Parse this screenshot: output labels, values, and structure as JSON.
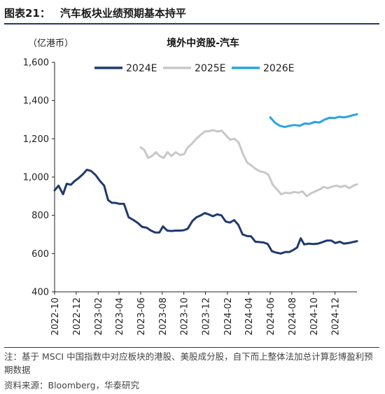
{
  "figure": {
    "label": "图表21：",
    "heading": "汽车板块业绩预期基本持平"
  },
  "chart_data": {
    "type": "line",
    "title": "境外中资股-汽车",
    "ylabel": "（亿港币）",
    "xlabel": "",
    "ylim": [
      400,
      1600
    ],
    "yticks": [
      400,
      600,
      800,
      1000,
      1200,
      1400,
      1600
    ],
    "ytick_labels": [
      "400",
      "600",
      "800",
      "1,000",
      "1,200",
      "1,400",
      "1,600"
    ],
    "xtick_labels": [
      "2022-10",
      "2022-12",
      "2023-02",
      "2023-04",
      "2023-06",
      "2023-08",
      "2023-10",
      "2023-12",
      "2024-02",
      "2024-04",
      "2024-06",
      "2024-08",
      "2024-10",
      "2024-12"
    ],
    "legend_position": "top-center",
    "grid": false,
    "series": [
      {
        "name": "2024E",
        "color": "#1f3a6e",
        "points": [
          [
            "2022-10-01",
            930
          ],
          [
            "2022-10-12",
            955
          ],
          [
            "2022-10-25",
            910
          ],
          [
            "2022-11-04",
            965
          ],
          [
            "2022-11-16",
            960
          ],
          [
            "2022-11-26",
            978
          ],
          [
            "2022-12-08",
            995
          ],
          [
            "2022-12-20",
            1015
          ],
          [
            "2022-12-31",
            1038
          ],
          [
            "2023-01-12",
            1032
          ],
          [
            "2023-01-25",
            1010
          ],
          [
            "2023-02-06",
            980
          ],
          [
            "2023-02-18",
            955
          ],
          [
            "2023-03-01",
            880
          ],
          [
            "2023-03-12",
            865
          ],
          [
            "2023-03-22",
            865
          ],
          [
            "2023-04-02",
            860
          ],
          [
            "2023-04-15",
            860
          ],
          [
            "2023-04-28",
            790
          ],
          [
            "2023-05-12",
            775
          ],
          [
            "2023-05-24",
            760
          ],
          [
            "2023-06-05",
            740
          ],
          [
            "2023-06-18",
            735
          ],
          [
            "2023-06-30",
            720
          ],
          [
            "2023-07-12",
            710
          ],
          [
            "2023-07-24",
            710
          ],
          [
            "2023-08-03",
            742
          ],
          [
            "2023-08-15",
            720
          ],
          [
            "2023-08-27",
            718
          ],
          [
            "2023-09-08",
            720
          ],
          [
            "2023-09-20",
            720
          ],
          [
            "2023-10-01",
            722
          ],
          [
            "2023-10-12",
            730
          ],
          [
            "2023-10-25",
            770
          ],
          [
            "2023-11-06",
            790
          ],
          [
            "2023-11-18",
            800
          ],
          [
            "2023-11-29",
            812
          ],
          [
            "2023-12-10",
            805
          ],
          [
            "2023-12-22",
            795
          ],
          [
            "2024-01-03",
            805
          ],
          [
            "2024-01-15",
            800
          ],
          [
            "2024-01-27",
            768
          ],
          [
            "2024-02-08",
            762
          ],
          [
            "2024-02-20",
            775
          ],
          [
            "2024-03-03",
            750
          ],
          [
            "2024-03-15",
            700
          ],
          [
            "2024-03-27",
            692
          ],
          [
            "2024-04-08",
            690
          ],
          [
            "2024-04-20",
            662
          ],
          [
            "2024-05-01",
            660
          ],
          [
            "2024-05-13",
            658
          ],
          [
            "2024-05-25",
            650
          ],
          [
            "2024-06-06",
            612
          ],
          [
            "2024-06-18",
            605
          ],
          [
            "2024-07-01",
            600
          ],
          [
            "2024-07-13",
            608
          ],
          [
            "2024-07-25",
            608
          ],
          [
            "2024-08-06",
            620
          ],
          [
            "2024-08-16",
            632
          ],
          [
            "2024-08-26",
            680
          ],
          [
            "2024-09-05",
            648
          ],
          [
            "2024-09-18",
            652
          ],
          [
            "2024-10-01",
            650
          ],
          [
            "2024-10-14",
            652
          ],
          [
            "2024-10-27",
            660
          ],
          [
            "2024-11-08",
            668
          ],
          [
            "2024-11-20",
            668
          ],
          [
            "2024-12-02",
            655
          ],
          [
            "2024-12-14",
            662
          ],
          [
            "2024-12-26",
            652
          ],
          [
            "2025-01-08",
            655
          ],
          [
            "2025-01-20",
            660
          ],
          [
            "2025-02-01",
            665
          ]
        ]
      },
      {
        "name": "2025E",
        "color": "#c8c8c8",
        "points": [
          [
            "2023-06-01",
            1155
          ],
          [
            "2023-06-12",
            1140
          ],
          [
            "2023-06-22",
            1100
          ],
          [
            "2023-07-03",
            1110
          ],
          [
            "2023-07-14",
            1130
          ],
          [
            "2023-07-25",
            1110
          ],
          [
            "2023-08-05",
            1100
          ],
          [
            "2023-08-16",
            1130
          ],
          [
            "2023-08-27",
            1110
          ],
          [
            "2023-09-08",
            1130
          ],
          [
            "2023-09-20",
            1115
          ],
          [
            "2023-10-02",
            1120
          ],
          [
            "2023-10-12",
            1155
          ],
          [
            "2023-10-24",
            1175
          ],
          [
            "2023-11-05",
            1200
          ],
          [
            "2023-11-17",
            1220
          ],
          [
            "2023-11-29",
            1238
          ],
          [
            "2023-12-11",
            1240
          ],
          [
            "2023-12-23",
            1245
          ],
          [
            "2024-01-04",
            1238
          ],
          [
            "2024-01-16",
            1242
          ],
          [
            "2024-01-28",
            1218
          ],
          [
            "2024-02-09",
            1195
          ],
          [
            "2024-02-21",
            1200
          ],
          [
            "2024-03-04",
            1180
          ],
          [
            "2024-03-16",
            1120
          ],
          [
            "2024-03-28",
            1075
          ],
          [
            "2024-04-09",
            1060
          ],
          [
            "2024-04-21",
            1042
          ],
          [
            "2024-05-03",
            1030
          ],
          [
            "2024-05-15",
            1025
          ],
          [
            "2024-05-27",
            1012
          ],
          [
            "2024-06-08",
            960
          ],
          [
            "2024-06-20",
            935
          ],
          [
            "2024-07-02",
            910
          ],
          [
            "2024-07-14",
            918
          ],
          [
            "2024-07-26",
            915
          ],
          [
            "2024-08-07",
            922
          ],
          [
            "2024-08-19",
            918
          ],
          [
            "2024-08-31",
            925
          ],
          [
            "2024-09-12",
            900
          ],
          [
            "2024-09-24",
            915
          ],
          [
            "2024-10-06",
            925
          ],
          [
            "2024-10-18",
            935
          ],
          [
            "2024-10-30",
            948
          ],
          [
            "2024-11-11",
            942
          ],
          [
            "2024-11-23",
            950
          ],
          [
            "2024-12-05",
            955
          ],
          [
            "2024-12-17",
            948
          ],
          [
            "2024-12-29",
            955
          ],
          [
            "2025-01-10",
            942
          ],
          [
            "2025-01-22",
            955
          ],
          [
            "2025-02-01",
            962
          ]
        ]
      },
      {
        "name": "2026E",
        "color": "#29a3e2",
        "points": [
          [
            "2024-06-01",
            1312
          ],
          [
            "2024-06-14",
            1285
          ],
          [
            "2024-06-28",
            1268
          ],
          [
            "2024-07-12",
            1262
          ],
          [
            "2024-07-26",
            1268
          ],
          [
            "2024-08-09",
            1272
          ],
          [
            "2024-08-23",
            1268
          ],
          [
            "2024-09-06",
            1280
          ],
          [
            "2024-09-20",
            1278
          ],
          [
            "2024-10-04",
            1288
          ],
          [
            "2024-10-18",
            1285
          ],
          [
            "2024-11-01",
            1300
          ],
          [
            "2024-11-15",
            1310
          ],
          [
            "2024-11-29",
            1308
          ],
          [
            "2024-12-13",
            1315
          ],
          [
            "2024-12-27",
            1312
          ],
          [
            "2025-01-10",
            1318
          ],
          [
            "2025-01-24",
            1325
          ],
          [
            "2025-02-01",
            1328
          ]
        ]
      }
    ]
  },
  "footnotes": {
    "note": "注：基于 MSCI 中国指数中对应板块的港股、美股成分股，自下而上整体法加总计算彭博盈利预期数据",
    "source": "资料来源：Bloomberg，华泰研究"
  }
}
